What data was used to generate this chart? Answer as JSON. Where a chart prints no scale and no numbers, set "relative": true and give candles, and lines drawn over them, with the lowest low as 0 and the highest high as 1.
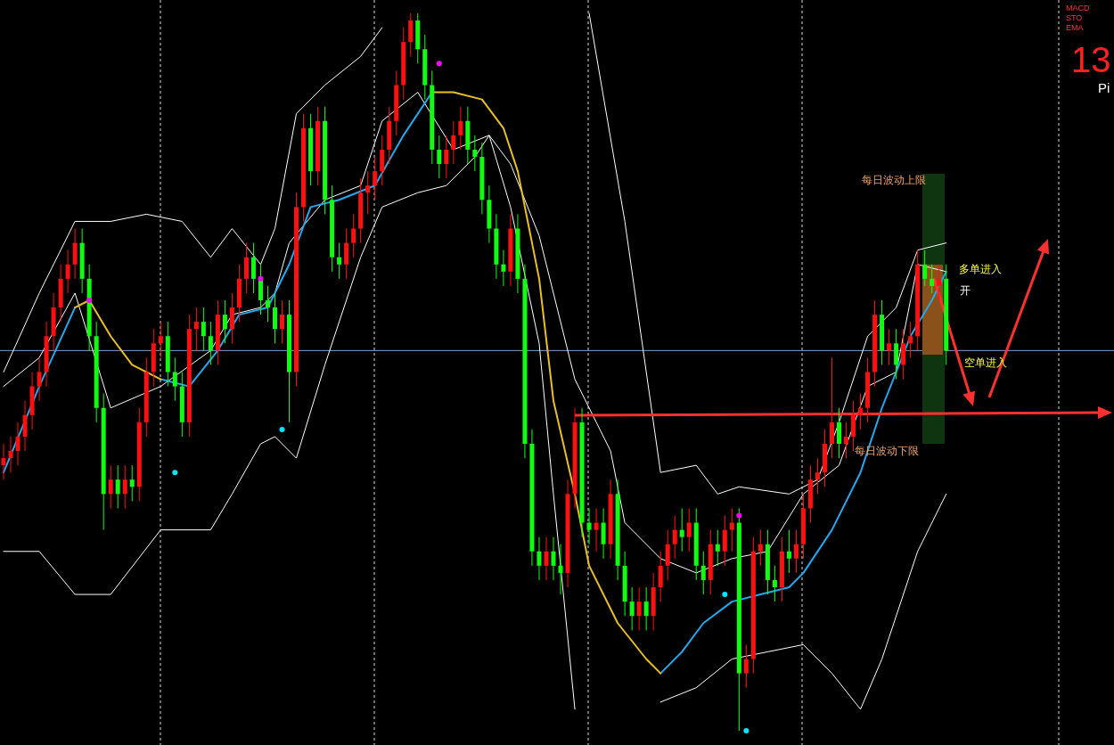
{
  "chart_data": {
    "type": "candlestick",
    "relative": true,
    "categories": [
      null,
      null,
      null,
      null,
      null,
      null,
      null,
      null,
      null,
      null,
      null,
      null,
      null,
      null,
      null,
      null,
      null,
      null,
      null,
      null,
      null,
      null,
      null,
      null,
      null,
      null,
      null,
      null,
      null,
      null,
      null,
      null,
      null,
      null,
      null,
      null,
      null,
      null,
      null,
      null,
      null,
      null,
      null,
      null,
      null,
      null,
      null,
      null,
      null,
      null,
      null,
      null,
      null,
      null,
      null,
      null,
      null,
      null,
      null,
      null,
      null,
      null,
      null,
      null,
      null,
      null,
      null,
      null,
      null,
      null,
      null,
      null,
      null,
      null,
      null,
      null,
      null,
      null,
      null,
      null,
      null,
      null,
      null,
      null,
      null,
      null,
      null,
      null,
      null,
      null,
      null,
      null,
      null,
      null,
      null,
      null,
      null,
      null,
      null,
      null,
      null,
      null,
      null,
      null,
      null,
      null,
      null,
      null,
      null,
      null,
      null,
      null,
      null,
      null,
      null,
      null,
      null,
      null,
      null,
      null,
      null,
      null,
      null,
      null,
      null,
      null,
      null,
      null,
      null,
      null,
      null,
      null,
      null
    ],
    "ohlc": [
      [
        0.37,
        0.4,
        0.35,
        0.38
      ],
      [
        0.38,
        0.41,
        0.36,
        0.39
      ],
      [
        0.39,
        0.43,
        0.37,
        0.41
      ],
      [
        0.41,
        0.46,
        0.39,
        0.44
      ],
      [
        0.44,
        0.5,
        0.42,
        0.48
      ],
      [
        0.48,
        0.52,
        0.46,
        0.5
      ],
      [
        0.5,
        0.57,
        0.48,
        0.55
      ],
      [
        0.55,
        0.61,
        0.53,
        0.59
      ],
      [
        0.59,
        0.65,
        0.57,
        0.63
      ],
      [
        0.63,
        0.67,
        0.61,
        0.65
      ],
      [
        0.65,
        0.7,
        0.63,
        0.68
      ],
      [
        0.68,
        0.7,
        0.61,
        0.63
      ],
      [
        0.63,
        0.65,
        0.53,
        0.55
      ],
      [
        0.55,
        0.57,
        0.43,
        0.45
      ],
      [
        0.45,
        0.47,
        0.28,
        0.33
      ],
      [
        0.33,
        0.37,
        0.31,
        0.35
      ],
      [
        0.35,
        0.37,
        0.31,
        0.33
      ],
      [
        0.33,
        0.37,
        0.31,
        0.35
      ],
      [
        0.35,
        0.37,
        0.32,
        0.34
      ],
      [
        0.34,
        0.45,
        0.32,
        0.43
      ],
      [
        0.43,
        0.52,
        0.41,
        0.5
      ],
      [
        0.5,
        0.56,
        0.48,
        0.54
      ],
      [
        0.54,
        0.57,
        0.52,
        0.55
      ],
      [
        0.55,
        0.57,
        0.48,
        0.5
      ],
      [
        0.5,
        0.52,
        0.46,
        0.48
      ],
      [
        0.48,
        0.5,
        0.41,
        0.43
      ],
      [
        0.43,
        0.58,
        0.41,
        0.56
      ],
      [
        0.56,
        0.59,
        0.53,
        0.57
      ],
      [
        0.57,
        0.59,
        0.53,
        0.55
      ],
      [
        0.55,
        0.57,
        0.51,
        0.53
      ],
      [
        0.53,
        0.6,
        0.51,
        0.58
      ],
      [
        0.58,
        0.6,
        0.54,
        0.56
      ],
      [
        0.56,
        0.61,
        0.54,
        0.59
      ],
      [
        0.59,
        0.65,
        0.57,
        0.63
      ],
      [
        0.63,
        0.68,
        0.61,
        0.66
      ],
      [
        0.66,
        0.68,
        0.61,
        0.63
      ],
      [
        0.63,
        0.65,
        0.58,
        0.6
      ],
      [
        0.6,
        0.62,
        0.57,
        0.59
      ],
      [
        0.59,
        0.61,
        0.54,
        0.56
      ],
      [
        0.56,
        0.6,
        0.54,
        0.58
      ],
      [
        0.58,
        0.6,
        0.43,
        0.5
      ],
      [
        0.5,
        0.75,
        0.48,
        0.73
      ],
      [
        0.73,
        0.86,
        0.71,
        0.84
      ],
      [
        0.84,
        0.86,
        0.76,
        0.78
      ],
      [
        0.78,
        0.87,
        0.76,
        0.85
      ],
      [
        0.85,
        0.87,
        0.72,
        0.74
      ],
      [
        0.74,
        0.76,
        0.64,
        0.66
      ],
      [
        0.66,
        0.68,
        0.63,
        0.65
      ],
      [
        0.65,
        0.7,
        0.63,
        0.68
      ],
      [
        0.68,
        0.72,
        0.66,
        0.7
      ],
      [
        0.7,
        0.77,
        0.68,
        0.75
      ],
      [
        0.75,
        0.78,
        0.72,
        0.76
      ],
      [
        0.76,
        0.8,
        0.74,
        0.78
      ],
      [
        0.78,
        0.83,
        0.76,
        0.81
      ],
      [
        0.81,
        0.87,
        0.79,
        0.85
      ],
      [
        0.85,
        0.92,
        0.83,
        0.9
      ],
      [
        0.9,
        0.98,
        0.88,
        0.96
      ],
      [
        0.96,
        1.0,
        0.94,
        0.99
      ],
      [
        0.99,
        1.0,
        0.93,
        0.95
      ],
      [
        0.95,
        0.97,
        0.88,
        0.9
      ],
      [
        0.9,
        0.92,
        0.79,
        0.81
      ],
      [
        0.81,
        0.83,
        0.77,
        0.79
      ],
      [
        0.79,
        0.83,
        0.77,
        0.81
      ],
      [
        0.81,
        0.85,
        0.79,
        0.83
      ],
      [
        0.83,
        0.87,
        0.81,
        0.85
      ],
      [
        0.85,
        0.87,
        0.79,
        0.81
      ],
      [
        0.81,
        0.83,
        0.78,
        0.8
      ],
      [
        0.8,
        0.82,
        0.72,
        0.74
      ],
      [
        0.74,
        0.76,
        0.68,
        0.7
      ],
      [
        0.7,
        0.72,
        0.63,
        0.65
      ],
      [
        0.65,
        0.67,
        0.62,
        0.64
      ],
      [
        0.64,
        0.72,
        0.62,
        0.7
      ],
      [
        0.7,
        0.72,
        0.61,
        0.63
      ],
      [
        0.63,
        0.65,
        0.38,
        0.4
      ],
      [
        0.4,
        0.42,
        0.23,
        0.25
      ],
      [
        0.25,
        0.27,
        0.21,
        0.23
      ],
      [
        0.23,
        0.27,
        0.21,
        0.25
      ],
      [
        0.25,
        0.27,
        0.21,
        0.23
      ],
      [
        0.23,
        0.26,
        0.19,
        0.22
      ],
      [
        0.22,
        0.35,
        0.2,
        0.33
      ],
      [
        0.33,
        0.45,
        0.31,
        0.43
      ],
      [
        0.43,
        0.45,
        0.27,
        0.29
      ],
      [
        0.29,
        0.31,
        0.26,
        0.28
      ],
      [
        0.28,
        0.31,
        0.25,
        0.29
      ],
      [
        0.29,
        0.31,
        0.24,
        0.26
      ],
      [
        0.26,
        0.35,
        0.24,
        0.33
      ],
      [
        0.33,
        0.35,
        0.21,
        0.23
      ],
      [
        0.23,
        0.25,
        0.16,
        0.18
      ],
      [
        0.18,
        0.2,
        0.14,
        0.16
      ],
      [
        0.16,
        0.2,
        0.14,
        0.18
      ],
      [
        0.18,
        0.2,
        0.14,
        0.16
      ],
      [
        0.16,
        0.22,
        0.14,
        0.2
      ],
      [
        0.2,
        0.25,
        0.18,
        0.23
      ],
      [
        0.23,
        0.28,
        0.21,
        0.26
      ],
      [
        0.26,
        0.3,
        0.24,
        0.28
      ],
      [
        0.28,
        0.31,
        0.25,
        0.27
      ],
      [
        0.27,
        0.31,
        0.25,
        0.29
      ],
      [
        0.29,
        0.31,
        0.21,
        0.23
      ],
      [
        0.23,
        0.25,
        0.19,
        0.21
      ],
      [
        0.21,
        0.28,
        0.19,
        0.26
      ],
      [
        0.26,
        0.28,
        0.23,
        0.25
      ],
      [
        0.25,
        0.3,
        0.23,
        0.28
      ],
      [
        0.28,
        0.31,
        0.25,
        0.29
      ],
      [
        0.29,
        0.31,
        0.0,
        0.08
      ],
      [
        0.08,
        0.12,
        0.06,
        0.1
      ],
      [
        0.1,
        0.27,
        0.08,
        0.25
      ],
      [
        0.25,
        0.28,
        0.23,
        0.26
      ],
      [
        0.26,
        0.28,
        0.19,
        0.21
      ],
      [
        0.21,
        0.23,
        0.18,
        0.2
      ],
      [
        0.2,
        0.27,
        0.18,
        0.25
      ],
      [
        0.25,
        0.28,
        0.22,
        0.24
      ],
      [
        0.24,
        0.28,
        0.22,
        0.26
      ],
      [
        0.26,
        0.33,
        0.24,
        0.31
      ],
      [
        0.31,
        0.37,
        0.29,
        0.35
      ],
      [
        0.35,
        0.38,
        0.33,
        0.36
      ],
      [
        0.36,
        0.42,
        0.34,
        0.4
      ],
      [
        0.4,
        0.52,
        0.38,
        0.43
      ],
      [
        0.43,
        0.45,
        0.38,
        0.4
      ],
      [
        0.4,
        0.43,
        0.38,
        0.41
      ],
      [
        0.41,
        0.46,
        0.39,
        0.44
      ],
      [
        0.44,
        0.47,
        0.42,
        0.45
      ],
      [
        0.45,
        0.52,
        0.43,
        0.5
      ],
      [
        0.5,
        0.6,
        0.48,
        0.58
      ],
      [
        0.58,
        0.6,
        0.51,
        0.53
      ],
      [
        0.53,
        0.56,
        0.51,
        0.54
      ],
      [
        0.54,
        0.56,
        0.49,
        0.51
      ],
      [
        0.51,
        0.56,
        0.49,
        0.54
      ],
      [
        0.54,
        0.57,
        0.52,
        0.55
      ],
      [
        0.55,
        0.67,
        0.53,
        0.65
      ],
      [
        0.65,
        0.67,
        0.62,
        0.63
      ],
      [
        0.63,
        0.65,
        0.61,
        0.62
      ],
      [
        0.62,
        0.65,
        0.6,
        0.63
      ],
      [
        0.63,
        0.65,
        0.51,
        0.53
      ]
    ],
    "series": [
      {
        "type": "line",
        "color": "#ffffff",
        "values": [
          0.5,
          null,
          null,
          null,
          null,
          0.61,
          null,
          null,
          null,
          null,
          0.71,
          null,
          null,
          null,
          null,
          0.71,
          null,
          null,
          null,
          null,
          0.72,
          null,
          null,
          null,
          null,
          0.71,
          null,
          null,
          null,
          0.66,
          null,
          null,
          0.7,
          null,
          null,
          null,
          0.65,
          null,
          0.7,
          null,
          null,
          0.86,
          null,
          null,
          null,
          0.9,
          null,
          null,
          null,
          null,
          0.94,
          null,
          null,
          0.98,
          null,
          null,
          null,
          null,
          null,
          null,
          null,
          null,
          null,
          null,
          null,
          null,
          null,
          null,
          null,
          null,
          null,
          null,
          null,
          null,
          null,
          null,
          null,
          null,
          null,
          null,
          null,
          null,
          null,
          null,
          null,
          null,
          null,
          null,
          null,
          null,
          null,
          null,
          null,
          null,
          null,
          null,
          null,
          null,
          null,
          null,
          null,
          null,
          null,
          null,
          null,
          null,
          null,
          null,
          null,
          null,
          null,
          null,
          null,
          null,
          null,
          null,
          null,
          null,
          null,
          null,
          null,
          null,
          null,
          null,
          null,
          null,
          null,
          null,
          null,
          null,
          null,
          null,
          null
        ]
      },
      {
        "type": "line",
        "color": "#ffffff",
        "values": [
          null,
          null,
          null,
          null,
          null,
          null,
          null,
          null,
          null,
          null,
          null,
          null,
          null,
          null,
          null,
          null,
          null,
          null,
          null,
          null,
          null,
          null,
          null,
          null,
          null,
          null,
          null,
          null,
          null,
          null,
          null,
          null,
          null,
          null,
          null,
          null,
          null,
          null,
          null,
          null,
          null,
          null,
          null,
          null,
          null,
          null,
          null,
          null,
          null,
          null,
          null,
          null,
          null,
          null,
          null,
          null,
          null,
          null,
          null,
          null,
          null,
          null,
          null,
          null,
          null,
          null,
          null,
          null,
          null,
          null,
          null,
          null,
          null,
          null,
          null,
          null,
          null,
          null,
          null,
          null,
          null,
          null,
          1.0,
          null,
          null,
          null,
          null,
          0.71,
          null,
          null,
          null,
          null,
          0.36,
          null,
          null,
          null,
          null,
          0.37,
          null,
          null,
          0.33,
          null,
          null,
          0.34,
          null,
          null,
          null,
          null,
          null,
          null,
          0.33,
          null,
          null,
          null,
          0.35,
          null,
          null,
          0.43,
          null,
          null,
          null,
          0.55,
          null,
          null,
          null,
          0.59,
          null,
          null,
          0.67,
          null,
          null,
          null,
          0.68
        ]
      },
      {
        "type": "line",
        "color": "#ffffff",
        "values": [
          0.48,
          null,
          null,
          null,
          null,
          0.52,
          null,
          null,
          null,
          null,
          0.61,
          null,
          null,
          null,
          null,
          0.45,
          null,
          null,
          null,
          null,
          null,
          null,
          0.48,
          null,
          null,
          null,
          null,
          null,
          null,
          0.53,
          null,
          null,
          0.58,
          null,
          null,
          null,
          0.59,
          null,
          0.61,
          null,
          0.68,
          null,
          null,
          null,
          null,
          0.74,
          null,
          null,
          null,
          null,
          0.76,
          null,
          null,
          0.85,
          null,
          null,
          null,
          null,
          0.89,
          null,
          null,
          null,
          null,
          0.81,
          null,
          null,
          null,
          null,
          0.83,
          null,
          null,
          0.79,
          null,
          null,
          null,
          0.69,
          null,
          null,
          null,
          null,
          0.49,
          null,
          null,
          null,
          null,
          0.39,
          null,
          0.29,
          null,
          null,
          null,
          null,
          0.24,
          null,
          null,
          null,
          null,
          0.22,
          null,
          null,
          null,
          null,
          0.24,
          null,
          null,
          null,
          null,
          0.25,
          null,
          null,
          null,
          null,
          0.33,
          null,
          null,
          null,
          null,
          0.37,
          null,
          null,
          null,
          0.48,
          null,
          null,
          null,
          0.5,
          null,
          null,
          0.65,
          null,
          null,
          null,
          0.64
        ]
      },
      {
        "type": "line",
        "color": "#ffffff",
        "values": [
          0.25,
          null,
          null,
          null,
          null,
          0.25,
          null,
          null,
          null,
          null,
          0.19,
          null,
          null,
          null,
          null,
          0.19,
          null,
          null,
          null,
          null,
          null,
          null,
          0.28,
          null,
          null,
          null,
          null,
          null,
          null,
          0.28,
          null,
          null,
          0.33,
          null,
          null,
          null,
          0.4,
          null,
          0.41,
          null,
          null,
          0.38,
          null,
          null,
          null,
          0.51,
          null,
          null,
          null,
          null,
          0.66,
          null,
          null,
          0.73,
          null,
          null,
          null,
          null,
          0.75,
          null,
          null,
          null,
          0.76,
          null,
          null,
          null,
          0.8,
          null,
          0.83,
          null,
          null,
          0.73,
          null,
          null,
          null,
          0.54,
          null,
          0.33,
          null,
          null,
          0.03,
          null,
          null,
          null,
          null,
          null,
          null,
          null,
          null,
          null,
          null,
          null,
          null,
          null,
          null,
          null,
          null,
          null,
          null,
          null,
          null,
          null,
          null,
          null,
          null,
          null,
          null,
          null,
          null,
          null,
          null,
          null,
          null,
          null,
          null,
          null,
          null,
          null,
          null,
          null,
          null,
          null,
          null,
          null,
          null,
          null,
          null,
          null,
          null,
          null,
          null,
          null,
          null
        ]
      },
      {
        "type": "line",
        "color": "#ffffff",
        "values": [
          null,
          null,
          null,
          null,
          null,
          null,
          null,
          null,
          null,
          null,
          null,
          null,
          null,
          null,
          null,
          null,
          null,
          null,
          null,
          null,
          null,
          null,
          null,
          null,
          null,
          null,
          null,
          null,
          null,
          null,
          null,
          null,
          null,
          null,
          null,
          null,
          null,
          null,
          null,
          null,
          null,
          null,
          null,
          null,
          null,
          null,
          null,
          null,
          null,
          null,
          null,
          null,
          null,
          null,
          null,
          null,
          null,
          null,
          null,
          null,
          null,
          null,
          null,
          null,
          null,
          null,
          null,
          null,
          null,
          null,
          null,
          null,
          null,
          null,
          null,
          null,
          null,
          null,
          null,
          null,
          null,
          null,
          null,
          null,
          null,
          null,
          null,
          null,
          null,
          null,
          null,
          null,
          0.04,
          null,
          null,
          null,
          null,
          0.06,
          null,
          null,
          null,
          null,
          0.1,
          null,
          null,
          null,
          null,
          0.11,
          null,
          null,
          null,
          null,
          0.12,
          null,
          null,
          null,
          0.08,
          null,
          null,
          null,
          0.03,
          null,
          null,
          0.1,
          null,
          null,
          null,
          null,
          0.25,
          null,
          null,
          null,
          0.33
        ]
      },
      {
        "type": "line",
        "color": "#22aaee",
        "values": [
          0.36,
          null,
          null,
          null,
          null,
          0.48,
          null,
          null,
          null,
          null,
          0.59,
          null,
          null,
          null,
          null,
          null,
          null,
          null,
          null,
          null,
          null,
          null,
          null,
          null,
          null,
          null,
          null,
          null,
          null,
          null,
          null,
          null,
          null,
          null,
          null,
          null,
          null,
          null,
          null,
          null,
          null,
          null,
          null,
          null,
          null,
          null,
          null,
          null,
          null,
          null,
          null,
          null,
          null,
          null,
          null,
          null,
          null,
          null,
          null,
          null,
          null,
          null,
          null,
          null,
          null,
          null,
          null,
          null,
          null,
          null,
          null,
          null,
          null,
          null,
          null,
          null,
          null,
          null,
          null,
          null,
          null,
          null,
          null,
          null,
          null,
          null,
          null,
          null,
          null,
          null,
          null,
          null,
          null,
          null,
          null,
          null,
          null,
          null,
          null,
          null,
          null,
          null,
          null,
          null,
          null,
          null,
          null,
          null,
          null,
          null,
          null,
          null,
          null,
          null,
          null,
          null,
          null,
          null,
          null,
          null,
          null,
          null,
          null,
          null,
          null,
          null,
          null,
          null,
          null,
          null,
          null,
          null,
          null
        ]
      },
      {
        "type": "line",
        "color": "#22aaee",
        "values": [
          null,
          null,
          null,
          null,
          null,
          null,
          null,
          null,
          null,
          null,
          null,
          null,
          null,
          null,
          null,
          null,
          null,
          null,
          null,
          null,
          null,
          null,
          0.49,
          null,
          null,
          null,
          0.48,
          null,
          null,
          null,
          0.53,
          null,
          null,
          0.58,
          null,
          null,
          null,
          0.59,
          null,
          null,
          0.65,
          null,
          null,
          0.73,
          null,
          null,
          null,
          0.74,
          null,
          null,
          null,
          null,
          0.76,
          null,
          null,
          null,
          0.83,
          null,
          null,
          null,
          0.89,
          null,
          null,
          null,
          null,
          null,
          null,
          null,
          null,
          null,
          null,
          null,
          null,
          null,
          null,
          null,
          null,
          null,
          null,
          null,
          null,
          null,
          null,
          null,
          null,
          null,
          null,
          null,
          null,
          null,
          null,
          null,
          null,
          null,
          null,
          null,
          null,
          null,
          null,
          null,
          null,
          null,
          null,
          null,
          null,
          null,
          null,
          null,
          null,
          null,
          null,
          null,
          null,
          null,
          null,
          null,
          null,
          null,
          null,
          null,
          null,
          null,
          null,
          null,
          null,
          null,
          null,
          null,
          null,
          null,
          null,
          null,
          null
        ]
      },
      {
        "type": "line",
        "color": "#22aaee",
        "values": [
          null,
          null,
          null,
          null,
          null,
          null,
          null,
          null,
          null,
          null,
          null,
          null,
          null,
          null,
          null,
          null,
          null,
          null,
          null,
          null,
          null,
          null,
          null,
          null,
          null,
          null,
          null,
          null,
          null,
          null,
          null,
          null,
          null,
          null,
          null,
          null,
          null,
          null,
          null,
          null,
          null,
          null,
          null,
          null,
          null,
          null,
          null,
          null,
          null,
          null,
          null,
          null,
          null,
          null,
          null,
          null,
          null,
          null,
          null,
          null,
          null,
          null,
          null,
          null,
          null,
          null,
          null,
          null,
          null,
          null,
          null,
          null,
          null,
          null,
          null,
          null,
          null,
          null,
          null,
          null,
          null,
          null,
          null,
          null,
          null,
          null,
          null,
          null,
          null,
          null,
          null,
          null,
          0.08,
          null,
          null,
          0.11,
          null,
          null,
          0.15,
          null,
          null,
          null,
          0.18,
          null,
          null,
          null,
          0.19,
          null,
          null,
          null,
          0.2,
          null,
          0.22,
          null,
          null,
          null,
          0.28,
          null,
          null,
          null,
          0.36,
          null,
          null,
          0.45,
          null,
          null,
          null,
          0.55,
          null,
          null,
          0.6,
          null,
          0.64
        ]
      },
      {
        "type": "line",
        "color": "#e8c020",
        "values": [
          null,
          null,
          null,
          null,
          null,
          null,
          null,
          null,
          null,
          null,
          0.59,
          null,
          0.6,
          null,
          null,
          0.55,
          null,
          null,
          0.51,
          null,
          null,
          null,
          0.49,
          null,
          null,
          null,
          null,
          null,
          null,
          null,
          null,
          null,
          null,
          null,
          null,
          null,
          null,
          null,
          null,
          null,
          null,
          null,
          null,
          null,
          null,
          null,
          null,
          null,
          null,
          null,
          null,
          null,
          null,
          null,
          null,
          null,
          null,
          null,
          null,
          null,
          null,
          null,
          null,
          null,
          null,
          null,
          null,
          null,
          null,
          null,
          null,
          null,
          null,
          null,
          null,
          null,
          null,
          null,
          null,
          null,
          null,
          null,
          null,
          null,
          null,
          null,
          null,
          null,
          null,
          null,
          null,
          null,
          null,
          null,
          null,
          null,
          null,
          null,
          null,
          null,
          null,
          null,
          null,
          null,
          null,
          null,
          null,
          null,
          null,
          null,
          null,
          null,
          null,
          null,
          null,
          null,
          null,
          null,
          null,
          null,
          null,
          null,
          null,
          null,
          null,
          null,
          null,
          null,
          null,
          null,
          null,
          null,
          null
        ]
      },
      {
        "type": "line",
        "color": "#e8c020",
        "values": [
          null,
          null,
          null,
          null,
          null,
          null,
          null,
          null,
          null,
          null,
          null,
          null,
          null,
          null,
          null,
          null,
          null,
          null,
          null,
          null,
          null,
          null,
          null,
          null,
          null,
          null,
          null,
          null,
          null,
          null,
          null,
          null,
          null,
          null,
          null,
          null,
          null,
          null,
          null,
          null,
          null,
          null,
          null,
          null,
          null,
          null,
          null,
          null,
          null,
          null,
          null,
          null,
          null,
          null,
          null,
          null,
          null,
          null,
          null,
          null,
          0.89,
          null,
          null,
          0.89,
          null,
          null,
          null,
          0.88,
          null,
          null,
          0.84,
          null,
          0.78,
          null,
          null,
          0.63,
          null,
          0.46,
          null,
          null,
          0.33,
          null,
          0.23,
          null,
          null,
          null,
          0.15,
          null,
          null,
          null,
          0.1,
          null,
          0.08,
          null,
          null,
          null,
          null,
          null,
          null,
          null,
          null,
          null,
          null,
          null,
          null,
          null,
          null,
          null,
          null,
          null,
          null,
          null,
          null,
          null,
          null,
          null,
          null,
          null,
          null,
          null,
          null,
          null,
          null,
          null,
          null,
          null,
          null,
          null,
          null,
          null,
          null,
          null,
          null
        ]
      },
      {
        "type": "scatter",
        "color": "#ff00ff",
        "values": [
          null,
          null,
          null,
          null,
          null,
          null,
          null,
          null,
          null,
          null,
          null,
          null,
          0.6,
          null,
          null,
          null,
          null,
          null,
          null,
          null,
          null,
          null,
          null,
          null,
          null,
          null,
          null,
          null,
          null,
          null,
          null,
          null,
          null,
          null,
          null,
          null,
          0.63,
          null,
          null,
          null,
          null,
          null,
          null,
          null,
          null,
          null,
          null,
          null,
          null,
          null,
          null,
          null,
          null,
          null,
          null,
          null,
          null,
          null,
          null,
          null,
          null,
          0.93,
          null,
          null,
          null,
          null,
          null,
          null,
          null,
          null,
          null,
          null,
          null,
          null,
          null,
          null,
          null,
          null,
          null,
          null,
          null,
          null,
          null,
          null,
          null,
          null,
          null,
          null,
          null,
          null,
          null,
          null,
          null,
          null,
          null,
          null,
          null,
          null,
          null,
          null,
          null,
          null,
          null,
          0.3,
          null,
          null,
          null,
          null,
          null,
          null,
          null,
          null,
          null,
          null,
          null,
          null,
          null,
          null,
          null,
          null,
          null,
          null,
          null,
          null,
          null,
          null,
          null,
          null,
          null,
          null,
          null,
          null,
          null
        ]
      },
      {
        "type": "scatter",
        "color": "#00e5ff",
        "values": [
          null,
          null,
          null,
          null,
          null,
          null,
          null,
          null,
          null,
          null,
          null,
          null,
          null,
          null,
          null,
          null,
          null,
          null,
          null,
          null,
          null,
          null,
          null,
          null,
          0.36,
          null,
          null,
          null,
          null,
          null,
          null,
          null,
          null,
          null,
          null,
          null,
          null,
          null,
          null,
          0.42,
          null,
          null,
          null,
          null,
          null,
          null,
          null,
          null,
          null,
          null,
          null,
          null,
          null,
          null,
          null,
          null,
          null,
          null,
          null,
          null,
          null,
          null,
          null,
          null,
          null,
          null,
          null,
          null,
          null,
          null,
          null,
          null,
          null,
          null,
          null,
          null,
          null,
          null,
          null,
          null,
          null,
          null,
          null,
          null,
          null,
          null,
          null,
          null,
          null,
          null,
          null,
          null,
          null,
          null,
          null,
          null,
          null,
          null,
          null,
          null,
          null,
          0.19,
          null,
          null,
          0.0,
          null,
          null,
          null,
          null,
          null,
          null,
          null,
          null,
          null,
          null,
          null,
          null,
          null,
          null,
          null,
          null,
          null,
          null,
          null,
          null,
          null,
          null,
          null,
          null,
          null,
          null,
          null,
          null
        ]
      }
    ],
    "ref_lines": [
      {
        "axis": "y",
        "value": 0.53,
        "color": "#7f9fcf",
        "line_style": "solid"
      }
    ],
    "annotations": [
      "每日波动上限",
      "多单进入",
      "开",
      "空单进入",
      "每日波动下限",
      "MACD",
      "STO",
      "EMA",
      "13",
      "Pi"
    ]
  }
}
